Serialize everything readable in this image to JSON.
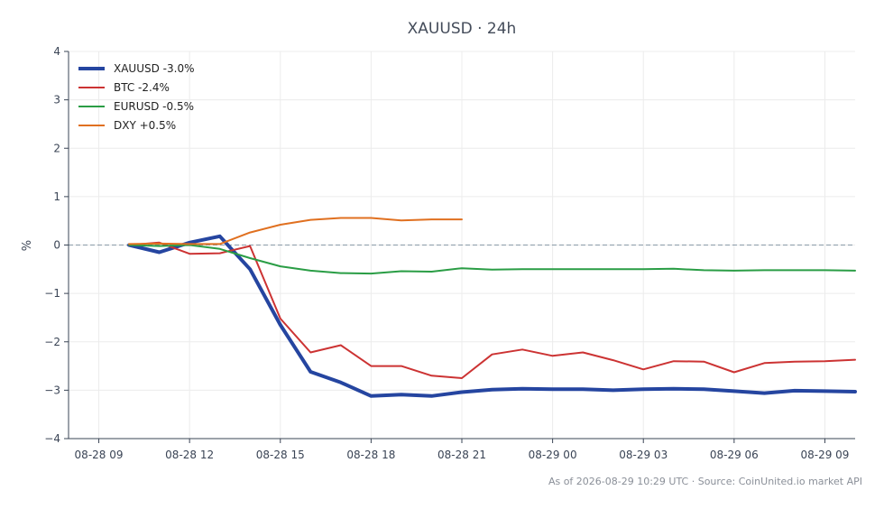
{
  "chart_data": {
    "type": "line",
    "title": "XAUUSD · 24h",
    "ylabel": "%",
    "xlabel": "",
    "ylim": [
      -4,
      4
    ],
    "yticks": [
      -4,
      -3,
      -2,
      -1,
      0,
      1,
      2,
      3,
      4
    ],
    "ytick_labels": [
      "−4",
      "−3",
      "−2",
      "−1",
      "0",
      "1",
      "2",
      "3",
      "4"
    ],
    "xlim": [
      -1,
      25
    ],
    "xticks": [
      0,
      3,
      6,
      9,
      12,
      15,
      18,
      21,
      24
    ],
    "xtick_labels": [
      "08-28 09",
      "08-28 12",
      "08-28 15",
      "08-28 18",
      "08-28 21",
      "08-29 00",
      "08-29 03",
      "08-29 06",
      "08-29 09"
    ],
    "zero_line": true,
    "grid": true,
    "legend_position": "top-left",
    "series": [
      {
        "name": "XAUUSD -3.0%",
        "color": "#2545a0",
        "width": 4,
        "x": [
          1,
          2,
          3,
          4,
          5,
          6,
          7,
          8,
          9,
          10,
          11,
          12,
          13,
          14,
          15,
          16,
          17,
          18,
          19,
          20,
          21,
          22,
          23,
          24,
          25
        ],
        "y": [
          0.0,
          -0.15,
          0.05,
          0.18,
          -0.5,
          -1.65,
          -2.62,
          -2.84,
          -3.12,
          -3.09,
          -3.12,
          -3.04,
          -2.99,
          -2.97,
          -2.98,
          -2.98,
          -3.0,
          -2.98,
          -2.97,
          -2.98,
          -3.02,
          -3.06,
          -3.01,
          -3.02,
          -3.03
        ]
      },
      {
        "name": "BTC -2.4%",
        "color": "#cc3333",
        "width": 2,
        "x": [
          1,
          2,
          3,
          4,
          5,
          6,
          7,
          8,
          9,
          10,
          11,
          12,
          13,
          14,
          15,
          16,
          17,
          18,
          19,
          20,
          21,
          22,
          23,
          24,
          25
        ],
        "y": [
          0.0,
          0.05,
          -0.18,
          -0.17,
          -0.02,
          -1.52,
          -2.22,
          -2.07,
          -2.5,
          -2.5,
          -2.7,
          -2.75,
          -2.26,
          -2.16,
          -2.29,
          -2.22,
          -2.38,
          -2.57,
          -2.4,
          -2.41,
          -2.63,
          -2.44,
          -2.41,
          -2.4,
          -2.37
        ]
      },
      {
        "name": "EURUSD -0.5%",
        "color": "#2a9d45",
        "width": 2,
        "x": [
          1,
          2,
          3,
          4,
          5,
          6,
          7,
          8,
          9,
          10,
          11,
          12,
          13,
          14,
          15,
          16,
          17,
          18,
          19,
          20,
          21,
          22,
          23,
          24,
          25
        ],
        "y": [
          0.0,
          -0.02,
          0.0,
          -0.08,
          -0.27,
          -0.44,
          -0.53,
          -0.58,
          -0.59,
          -0.54,
          -0.55,
          -0.48,
          -0.51,
          -0.5,
          -0.5,
          -0.5,
          -0.5,
          -0.5,
          -0.49,
          -0.52,
          -0.53,
          -0.52,
          -0.52,
          -0.52,
          -0.53
        ]
      },
      {
        "name": "DXY +0.5%",
        "color": "#e07020",
        "width": 2,
        "x": [
          1,
          2,
          3,
          4,
          5,
          6,
          7,
          8,
          9,
          10,
          11,
          12
        ],
        "y": [
          0.02,
          0.03,
          0.02,
          0.02,
          0.26,
          0.42,
          0.52,
          0.56,
          0.56,
          0.51,
          0.53,
          0.53
        ]
      }
    ]
  },
  "footer": {
    "source": "As of 2026-08-29 10:29 UTC · Source: CoinUnited.io market API"
  }
}
